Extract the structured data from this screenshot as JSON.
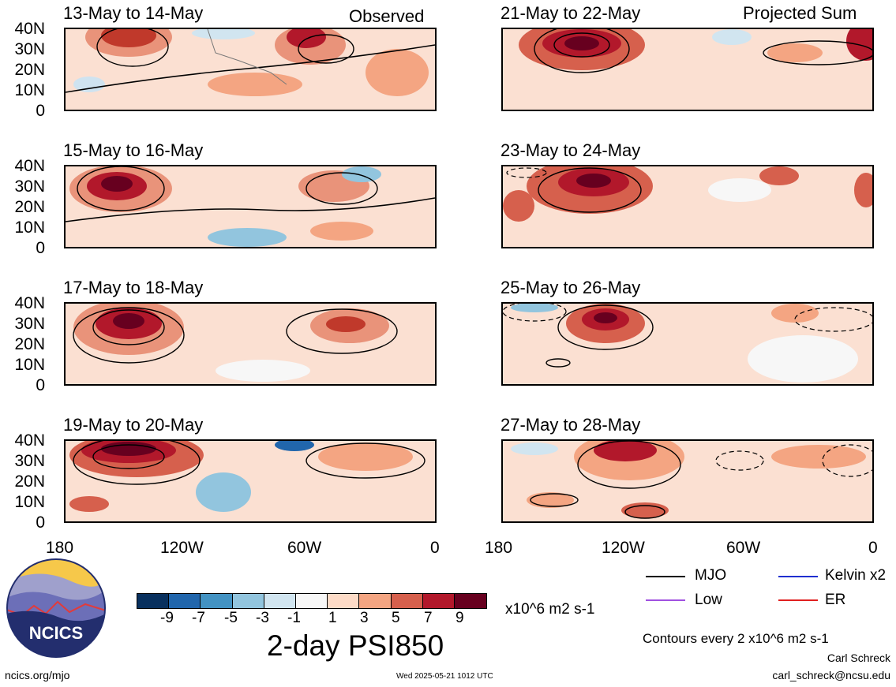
{
  "left_panel_tag": "Observed",
  "right_panel_tag": "Projected Sum",
  "panels_left": [
    {
      "title": "13-May to 14-May"
    },
    {
      "title": "15-May to 16-May"
    },
    {
      "title": "17-May to 18-May"
    },
    {
      "title": "19-May to 20-May"
    }
  ],
  "panels_right": [
    {
      "title": "21-May to 22-May"
    },
    {
      "title": "23-May to 24-May"
    },
    {
      "title": "25-May to 26-May"
    },
    {
      "title": "27-May to 28-May"
    }
  ],
  "lat_labels": [
    "40N",
    "30N",
    "20N",
    "10N",
    "0"
  ],
  "lon_labels": [
    "180",
    "120W",
    "60W",
    "0"
  ],
  "colorbar": {
    "colors": [
      "#08305e",
      "#2166ac",
      "#4393c3",
      "#92c5de",
      "#d1e5f0",
      "#f7f7f7",
      "#fddbc7",
      "#f4a582",
      "#d6604d",
      "#b2182b",
      "#67001f"
    ],
    "tick_labels": [
      "-9",
      "-7",
      "-5",
      "-3",
      "-1",
      "1",
      "3",
      "5",
      "7",
      "9"
    ],
    "units": "x10^6 m2 s-1"
  },
  "main_title": "2-day PSI850",
  "legend": [
    {
      "label": "MJO",
      "color": "#000000"
    },
    {
      "label": "Kelvin x2",
      "color": "#1f2fd0"
    },
    {
      "label": "Low",
      "color": "#a050e0"
    },
    {
      "label": "ER",
      "color": "#e02020"
    }
  ],
  "contour_note": "Contours every 2 x10^6 m2 s-1",
  "author": "Carl Schreck",
  "email": "carl_schreck@ncsu.edu",
  "website": "ncics.org/mjo",
  "timestamp": "Wed 2025-05-21 1012 UTC",
  "logo_text": "NCICS"
}
